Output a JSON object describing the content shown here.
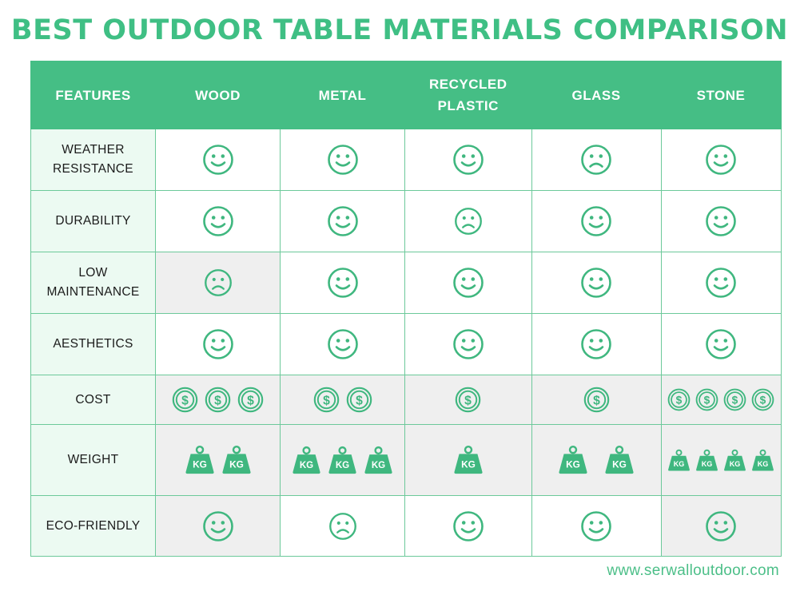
{
  "title": "BEST OUTDOOR TABLE MATERIALS COMPARISON",
  "website": "www.serwalloutdoor.com",
  "accent_color": "#45be85",
  "icon_color": "#3fb77f",
  "table": {
    "headers": [
      "FEATURES",
      "WOOD",
      "METAL",
      "RECYCLED PLASTIC",
      "GLASS",
      "STONE"
    ],
    "rows": [
      {
        "feature": "WEATHER RESISTANCE",
        "cells": [
          {
            "icon": "smile-face-icon",
            "count": 1,
            "shade": false
          },
          {
            "icon": "smile-face-icon",
            "count": 1,
            "shade": false
          },
          {
            "icon": "smile-face-icon",
            "count": 1,
            "shade": false
          },
          {
            "icon": "sad-face-icon",
            "count": 1,
            "shade": false
          },
          {
            "icon": "smile-face-icon",
            "count": 1,
            "shade": false
          }
        ]
      },
      {
        "feature": "DURABILITY",
        "cells": [
          {
            "icon": "smile-face-icon",
            "count": 1,
            "shade": false
          },
          {
            "icon": "smile-face-icon",
            "count": 1,
            "shade": false
          },
          {
            "icon": "sad-face-icon",
            "count": 1,
            "shade": false
          },
          {
            "icon": "smile-face-icon",
            "count": 1,
            "shade": false
          },
          {
            "icon": "smile-face-icon",
            "count": 1,
            "shade": false
          }
        ]
      },
      {
        "feature": "LOW MAINTENANCE",
        "cells": [
          {
            "icon": "sad-face-icon",
            "count": 1,
            "shade": true
          },
          {
            "icon": "smile-face-icon",
            "count": 1,
            "shade": false
          },
          {
            "icon": "smile-face-icon",
            "count": 1,
            "shade": false
          },
          {
            "icon": "smile-face-icon",
            "count": 1,
            "shade": false
          },
          {
            "icon": "smile-face-icon",
            "count": 1,
            "shade": false
          }
        ]
      },
      {
        "feature": "AESTHETICS",
        "cells": [
          {
            "icon": "smile-face-icon",
            "count": 1,
            "shade": false
          },
          {
            "icon": "smile-face-icon",
            "count": 1,
            "shade": false
          },
          {
            "icon": "smile-face-icon",
            "count": 1,
            "shade": false
          },
          {
            "icon": "smile-face-icon",
            "count": 1,
            "shade": false
          },
          {
            "icon": "smile-face-icon",
            "count": 1,
            "shade": false
          }
        ]
      },
      {
        "feature": "COST",
        "cells": [
          {
            "icon": "dollar-coin-icon",
            "count": 3,
            "shade": true
          },
          {
            "icon": "dollar-coin-icon",
            "count": 2,
            "shade": true
          },
          {
            "icon": "dollar-coin-icon",
            "count": 1,
            "shade": true
          },
          {
            "icon": "dollar-coin-icon",
            "count": 1,
            "shade": true
          },
          {
            "icon": "dollar-coin-icon",
            "count": 4,
            "shade": true
          }
        ]
      },
      {
        "feature": "WEIGHT",
        "cells": [
          {
            "icon": "kg-weight-icon",
            "count": 2,
            "shade": true
          },
          {
            "icon": "kg-weight-icon",
            "count": 3,
            "shade": true
          },
          {
            "icon": "kg-weight-icon",
            "count": 1,
            "shade": true
          },
          {
            "icon": "kg-weight-icon",
            "count": 2,
            "shade": true
          },
          {
            "icon": "kg-weight-icon",
            "count": 4,
            "shade": true
          }
        ]
      },
      {
        "feature": "ECO-FRIENDLY",
        "cells": [
          {
            "icon": "smile-face-icon",
            "count": 1,
            "shade": true
          },
          {
            "icon": "sad-face-icon",
            "count": 1,
            "shade": false
          },
          {
            "icon": "smile-face-icon",
            "count": 1,
            "shade": false
          },
          {
            "icon": "smile-face-icon",
            "count": 1,
            "shade": false
          },
          {
            "icon": "smile-face-icon",
            "count": 1,
            "shade": true
          }
        ]
      }
    ],
    "weight_label": "KG"
  }
}
